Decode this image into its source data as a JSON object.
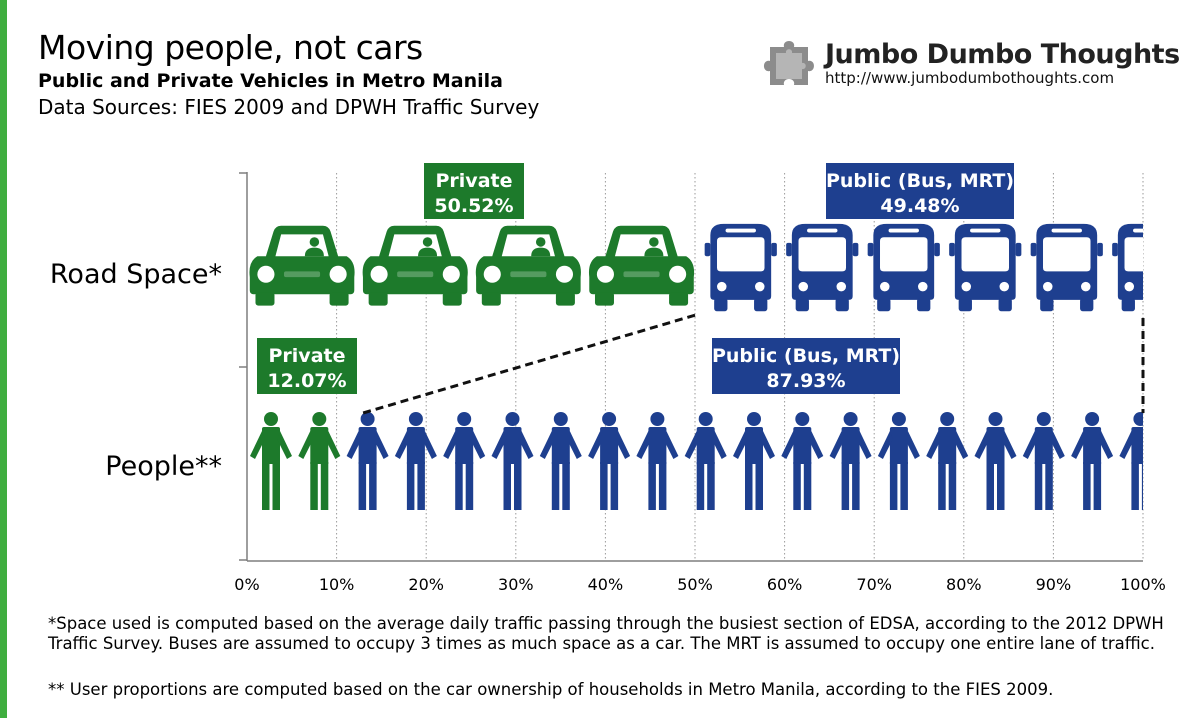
{
  "header": {
    "title": "Moving people, not cars",
    "subtitle": "Public and Private Vehicles in Metro Manila",
    "sources": "Data Sources: FIES 2009 and DPWH Traffic Survey"
  },
  "brand": {
    "name": "Jumbo Dumbo Thoughts",
    "url": "http://www.jumbodumbothoughts.com",
    "logo_icon": "puzzle-piece-icon"
  },
  "colors": {
    "private": "#1d7a2b",
    "public": "#1e3f8f",
    "accent_bar": "#3fae3f",
    "grid": "#9a9a9a",
    "axis": "#7f7f7f"
  },
  "chart_data": {
    "type": "bar",
    "orientation": "horizontal",
    "stacked": true,
    "categories": [
      "Road Space*",
      "People**"
    ],
    "series": [
      {
        "name": "Private",
        "values": [
          50.52,
          12.07
        ],
        "labels": [
          "50.52%",
          "12.07%"
        ]
      },
      {
        "name": "Public (Bus, MRT)",
        "values": [
          49.48,
          87.93
        ],
        "labels": [
          "49.48%",
          "87.93%"
        ]
      }
    ],
    "units": "%",
    "xlim": [
      0,
      100
    ],
    "xticks": [
      "0%",
      "10%",
      "20%",
      "30%",
      "40%",
      "50%",
      "60%",
      "70%",
      "80%",
      "90%",
      "100%"
    ],
    "grid": "vertical-dotted",
    "bar_icons": {
      "Road Space*": {
        "Private": "car-icon",
        "Public (Bus, MRT)": "bus-icon"
      },
      "People**": {
        "Private": "person-icon",
        "Public (Bus, MRT)": "person-icon"
      }
    },
    "annotation": "dashed lines connect the private/public boundary of both bars"
  },
  "footnotes": {
    "road_space": "*Space used is computed based on the average daily traffic passing through the busiest section of EDSA, according to the 2012 DPWH Traffic Survey. Buses are assumed to occupy 3 times as much space as a car. The MRT is assumed to occupy one entire lane of traffic.",
    "people": "** User proportions are computed based on the car ownership of households in Metro Manila, according to the FIES 2009."
  }
}
